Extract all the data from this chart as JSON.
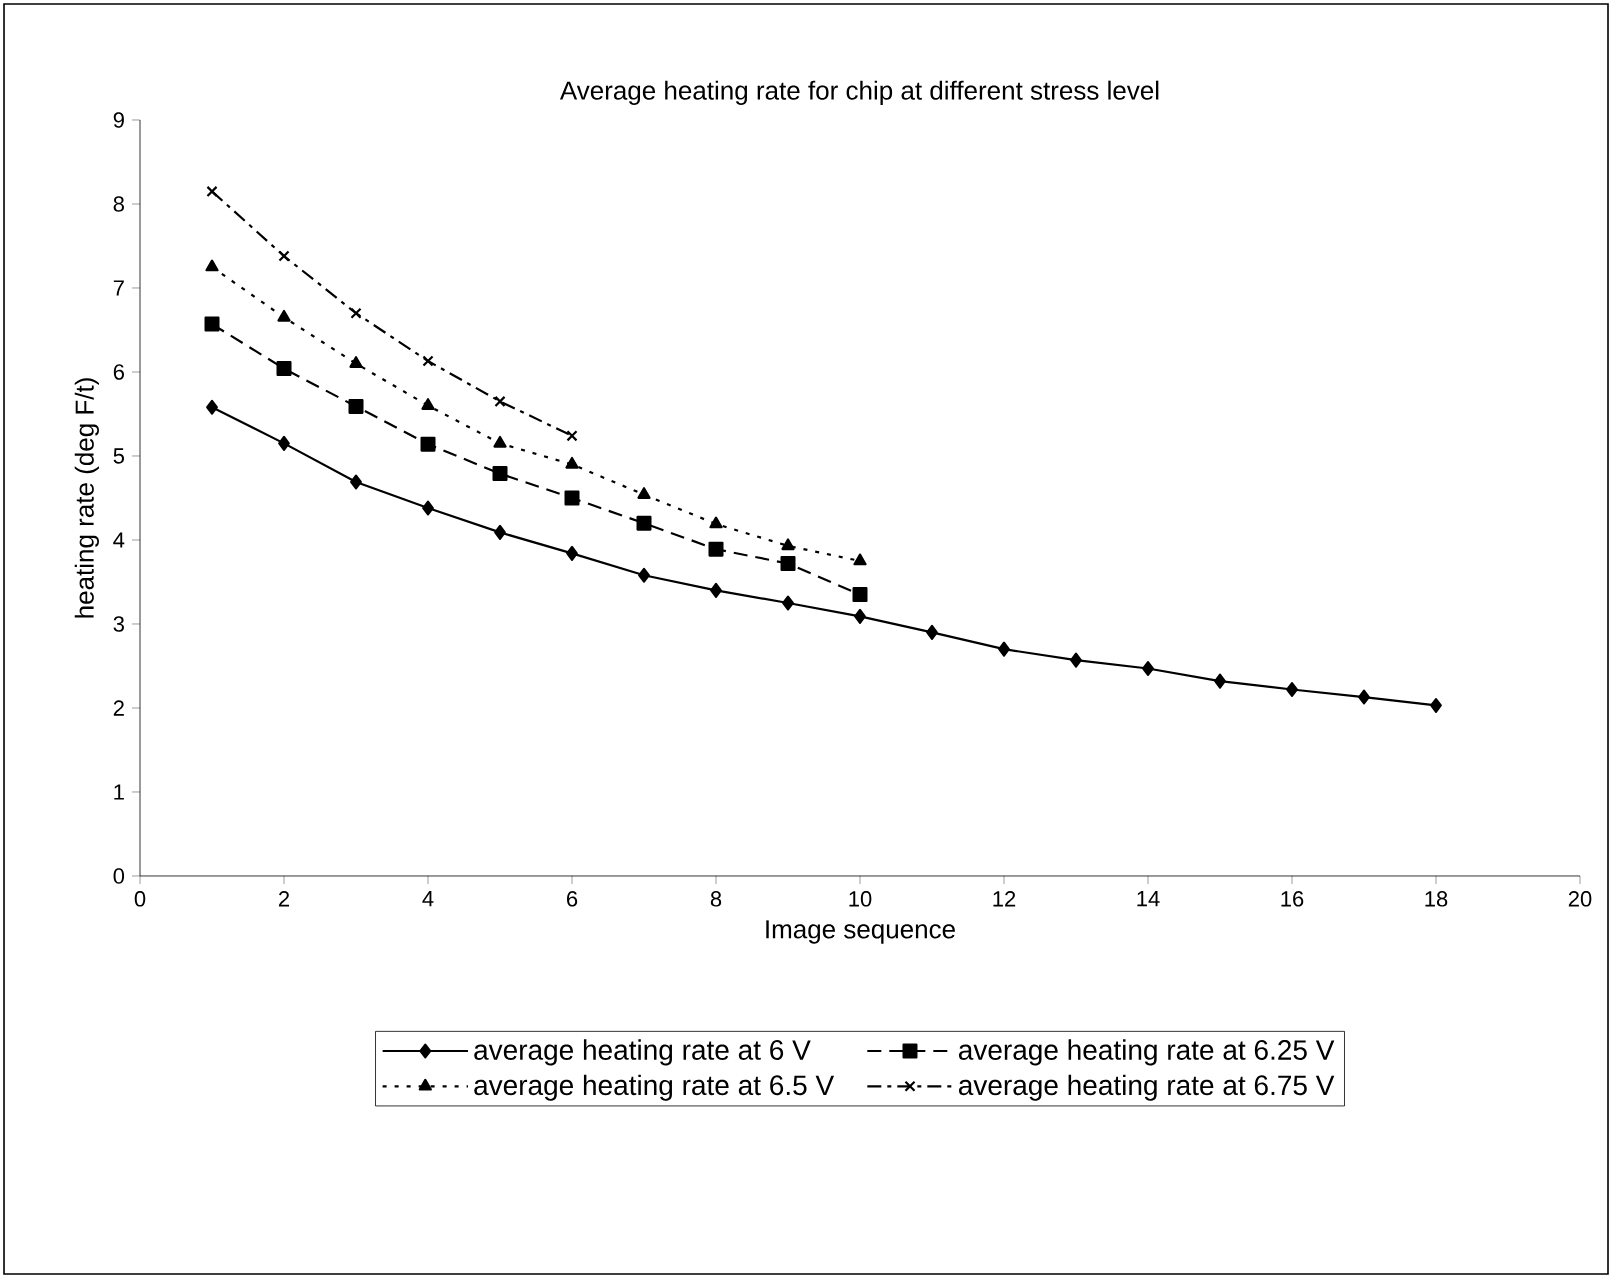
{
  "chart_data": {
    "type": "line",
    "title": "Average heating rate for chip at different stress level",
    "xlabel": "Image sequence",
    "ylabel": "heating rate (deg F/t)",
    "xlim": [
      0,
      20
    ],
    "xticks": [
      0,
      2,
      4,
      6,
      8,
      10,
      12,
      14,
      16,
      18,
      20
    ],
    "ylim": [
      0,
      9
    ],
    "yticks": [
      0,
      1,
      2,
      3,
      4,
      5,
      6,
      7,
      8,
      9
    ],
    "grid": false,
    "legend": "bottom",
    "series": [
      {
        "name": "average heating rate at 6 V",
        "color": "#000000",
        "marker": "diamond",
        "line_style": "solid",
        "x": [
          1,
          2,
          3,
          4,
          5,
          6,
          7,
          8,
          9,
          10,
          11,
          12,
          13,
          14,
          15,
          16,
          17,
          18
        ],
        "values": [
          5.58,
          5.15,
          4.69,
          4.38,
          4.09,
          3.84,
          3.58,
          3.4,
          3.25,
          3.09,
          2.9,
          2.7,
          2.57,
          2.47,
          2.32,
          2.22,
          2.13,
          2.03
        ]
      },
      {
        "name": "average heating rate at 6.25 V",
        "color": "#000000",
        "marker": "square",
        "line_style": "dashed",
        "x": [
          1,
          2,
          3,
          4,
          5,
          6,
          7,
          8,
          9,
          10
        ],
        "values": [
          6.57,
          6.04,
          5.59,
          5.14,
          4.79,
          4.5,
          4.2,
          3.89,
          3.72,
          3.35
        ]
      },
      {
        "name": "average heating rate at 6.5 V",
        "color": "#000000",
        "marker": "triangle",
        "line_style": "dotted",
        "x": [
          1,
          2,
          3,
          4,
          5,
          6,
          7,
          8,
          9,
          10
        ],
        "values": [
          7.25,
          6.65,
          6.1,
          5.6,
          5.15,
          4.9,
          4.54,
          4.19,
          3.93,
          3.75
        ]
      },
      {
        "name": "average heating rate at 6.75 V",
        "color": "#000000",
        "marker": "cross",
        "line_style": "dashdotted",
        "x": [
          1,
          2,
          3,
          4,
          5,
          6
        ],
        "values": [
          8.15,
          7.38,
          6.7,
          6.13,
          5.65,
          5.24
        ]
      }
    ]
  }
}
